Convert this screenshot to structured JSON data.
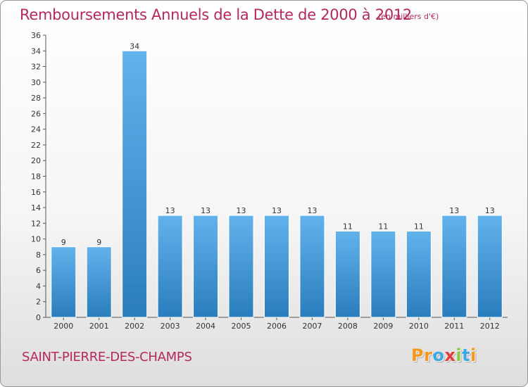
{
  "header": {
    "title": "Remboursements Annuels de la Dette de 2000 à 2012",
    "subtitle": "(en milliers d'€)"
  },
  "footer": {
    "town": "SAINT-PIERRE-DES-CHAMPS",
    "logo_letters": [
      {
        "char": "P",
        "color": "#f39a1e"
      },
      {
        "char": "r",
        "color": "#f39a1e"
      },
      {
        "char": "o",
        "color": "#3da9e0"
      },
      {
        "char": "x",
        "color": "#e33b3b"
      },
      {
        "char": "i",
        "color": "#8cc63f"
      },
      {
        "char": "t",
        "color": "#3da9e0"
      },
      {
        "char": "i",
        "color": "#f39a1e"
      }
    ]
  },
  "colors": {
    "bar_light": "#62b2ec",
    "bar_dark": "#2a7dbc",
    "title": "#b3285d"
  },
  "chart_data": {
    "type": "bar",
    "title": "Remboursements Annuels de la Dette de 2000 à 2012",
    "subtitle": "(en milliers d'€)",
    "categories": [
      "2000",
      "2001",
      "2002",
      "2003",
      "2004",
      "2005",
      "2006",
      "2007",
      "2008",
      "2009",
      "2010",
      "2011",
      "2012"
    ],
    "values": [
      9,
      9,
      34,
      13,
      13,
      13,
      13,
      13,
      11,
      11,
      11,
      13,
      13
    ],
    "data_labels": [
      "9",
      "9",
      "34",
      "13",
      "13",
      "13",
      "13",
      "13",
      "11",
      "11",
      "11",
      "13",
      "13"
    ],
    "ylim": [
      0,
      36
    ],
    "yticks": [
      0,
      2,
      4,
      6,
      8,
      10,
      12,
      14,
      16,
      18,
      20,
      22,
      24,
      26,
      28,
      30,
      32,
      34,
      36
    ],
    "xlabel": "",
    "ylabel": "",
    "grid": false,
    "legend": "none"
  }
}
